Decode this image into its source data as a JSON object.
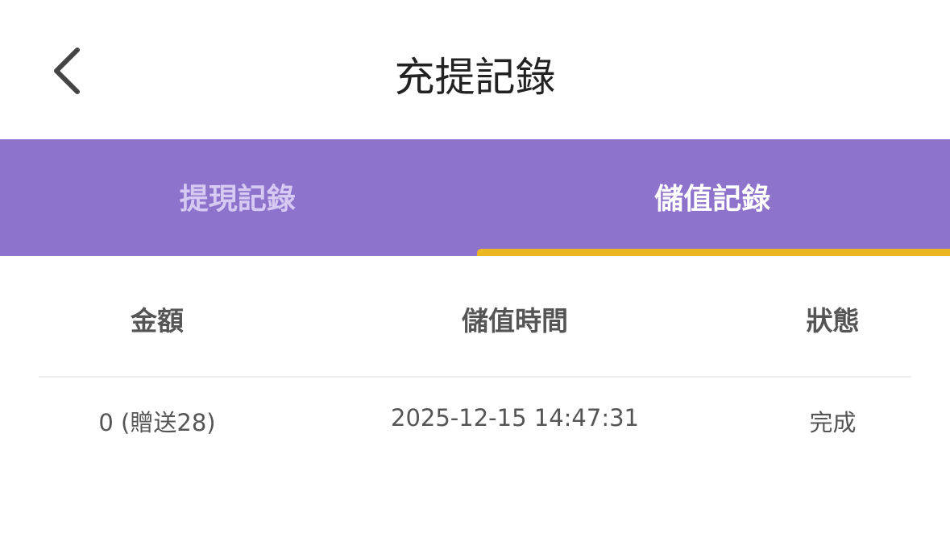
{
  "header": {
    "title": "充提記錄",
    "back_icon": "chevron-left-icon"
  },
  "tabs": [
    {
      "label": "提現記錄",
      "active": false
    },
    {
      "label": "儲值記錄",
      "active": true
    }
  ],
  "colors": {
    "tab_bar": "#8e73cd",
    "indicator": "#eab723"
  },
  "table": {
    "columns": [
      "金額",
      "儲值時間",
      "狀態"
    ],
    "rows": [
      {
        "amount": "0 (贈送28)",
        "time": "2025-12-15 14:47:31",
        "status": "完成"
      }
    ]
  }
}
